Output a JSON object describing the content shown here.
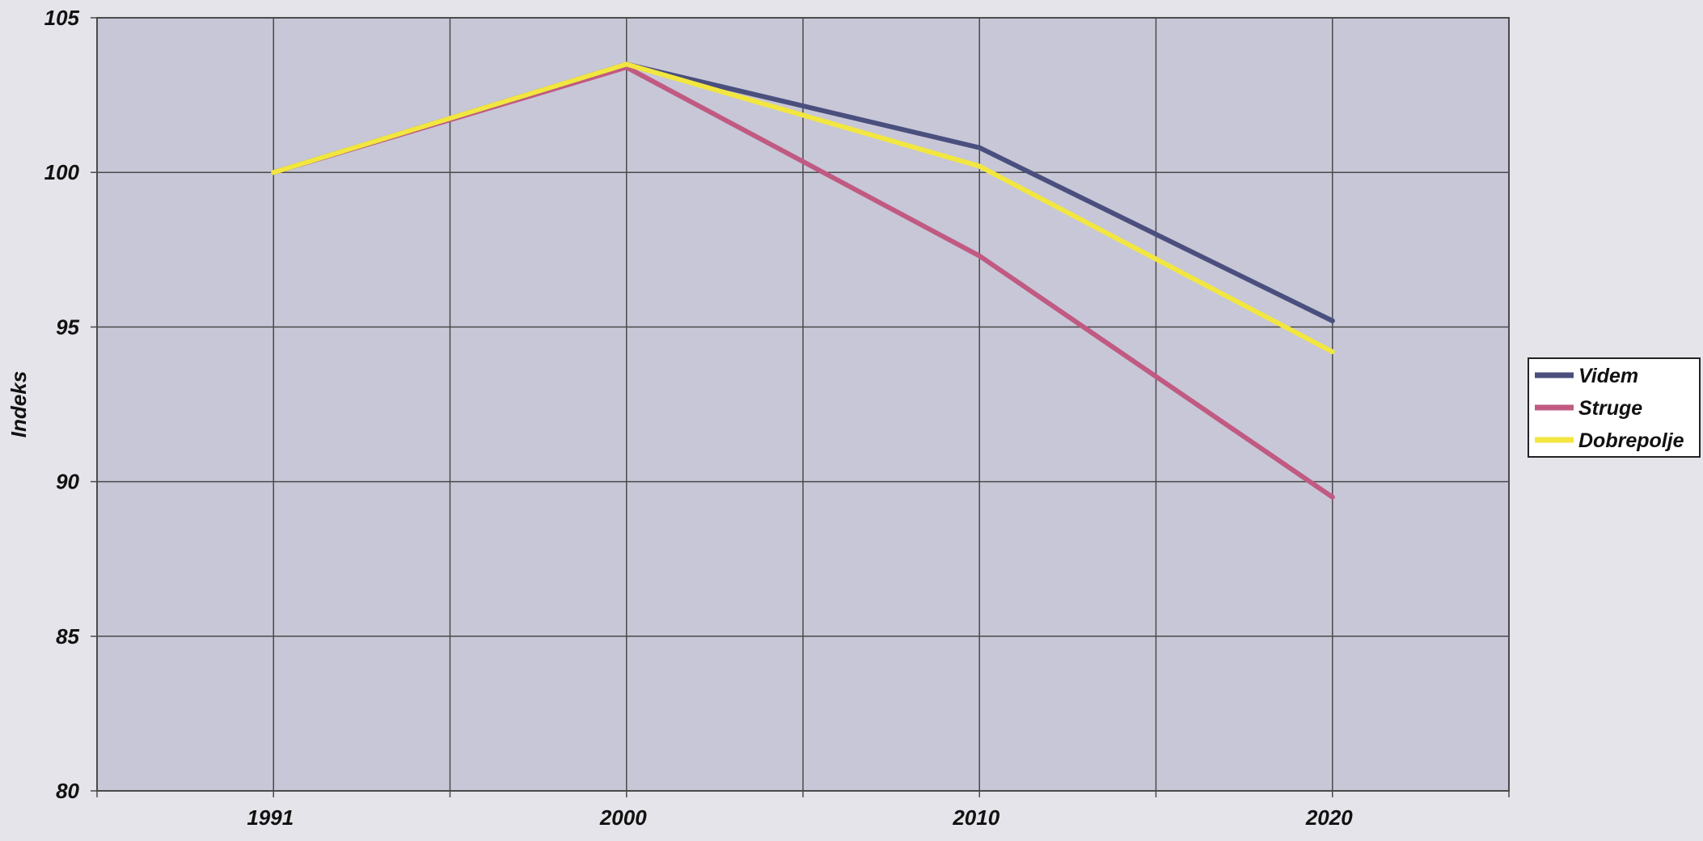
{
  "chart_data": {
    "type": "line",
    "title": "",
    "xlabel": "",
    "ylabel": "Indeks",
    "x": [
      "1991",
      "2000",
      "2010",
      "2020"
    ],
    "ylim": [
      80,
      105
    ],
    "yticks": [
      80,
      85,
      90,
      95,
      100,
      105
    ],
    "grid": true,
    "legend_position": "right",
    "series": [
      {
        "name": "Videm",
        "values": [
          100,
          103.5,
          100.8,
          95.2
        ]
      },
      {
        "name": "Struge",
        "values": [
          100,
          103.4,
          97.3,
          89.5
        ]
      },
      {
        "name": "Dobrepolje",
        "values": [
          100,
          103.5,
          100.2,
          94.2
        ]
      }
    ]
  },
  "colors": {
    "plot_background": "#c7c7d7",
    "gridline": "#4a4a4a",
    "Videm": "#4a4f7e",
    "Struge": "#c15a82",
    "Dobrepolje": "#f2e640"
  }
}
